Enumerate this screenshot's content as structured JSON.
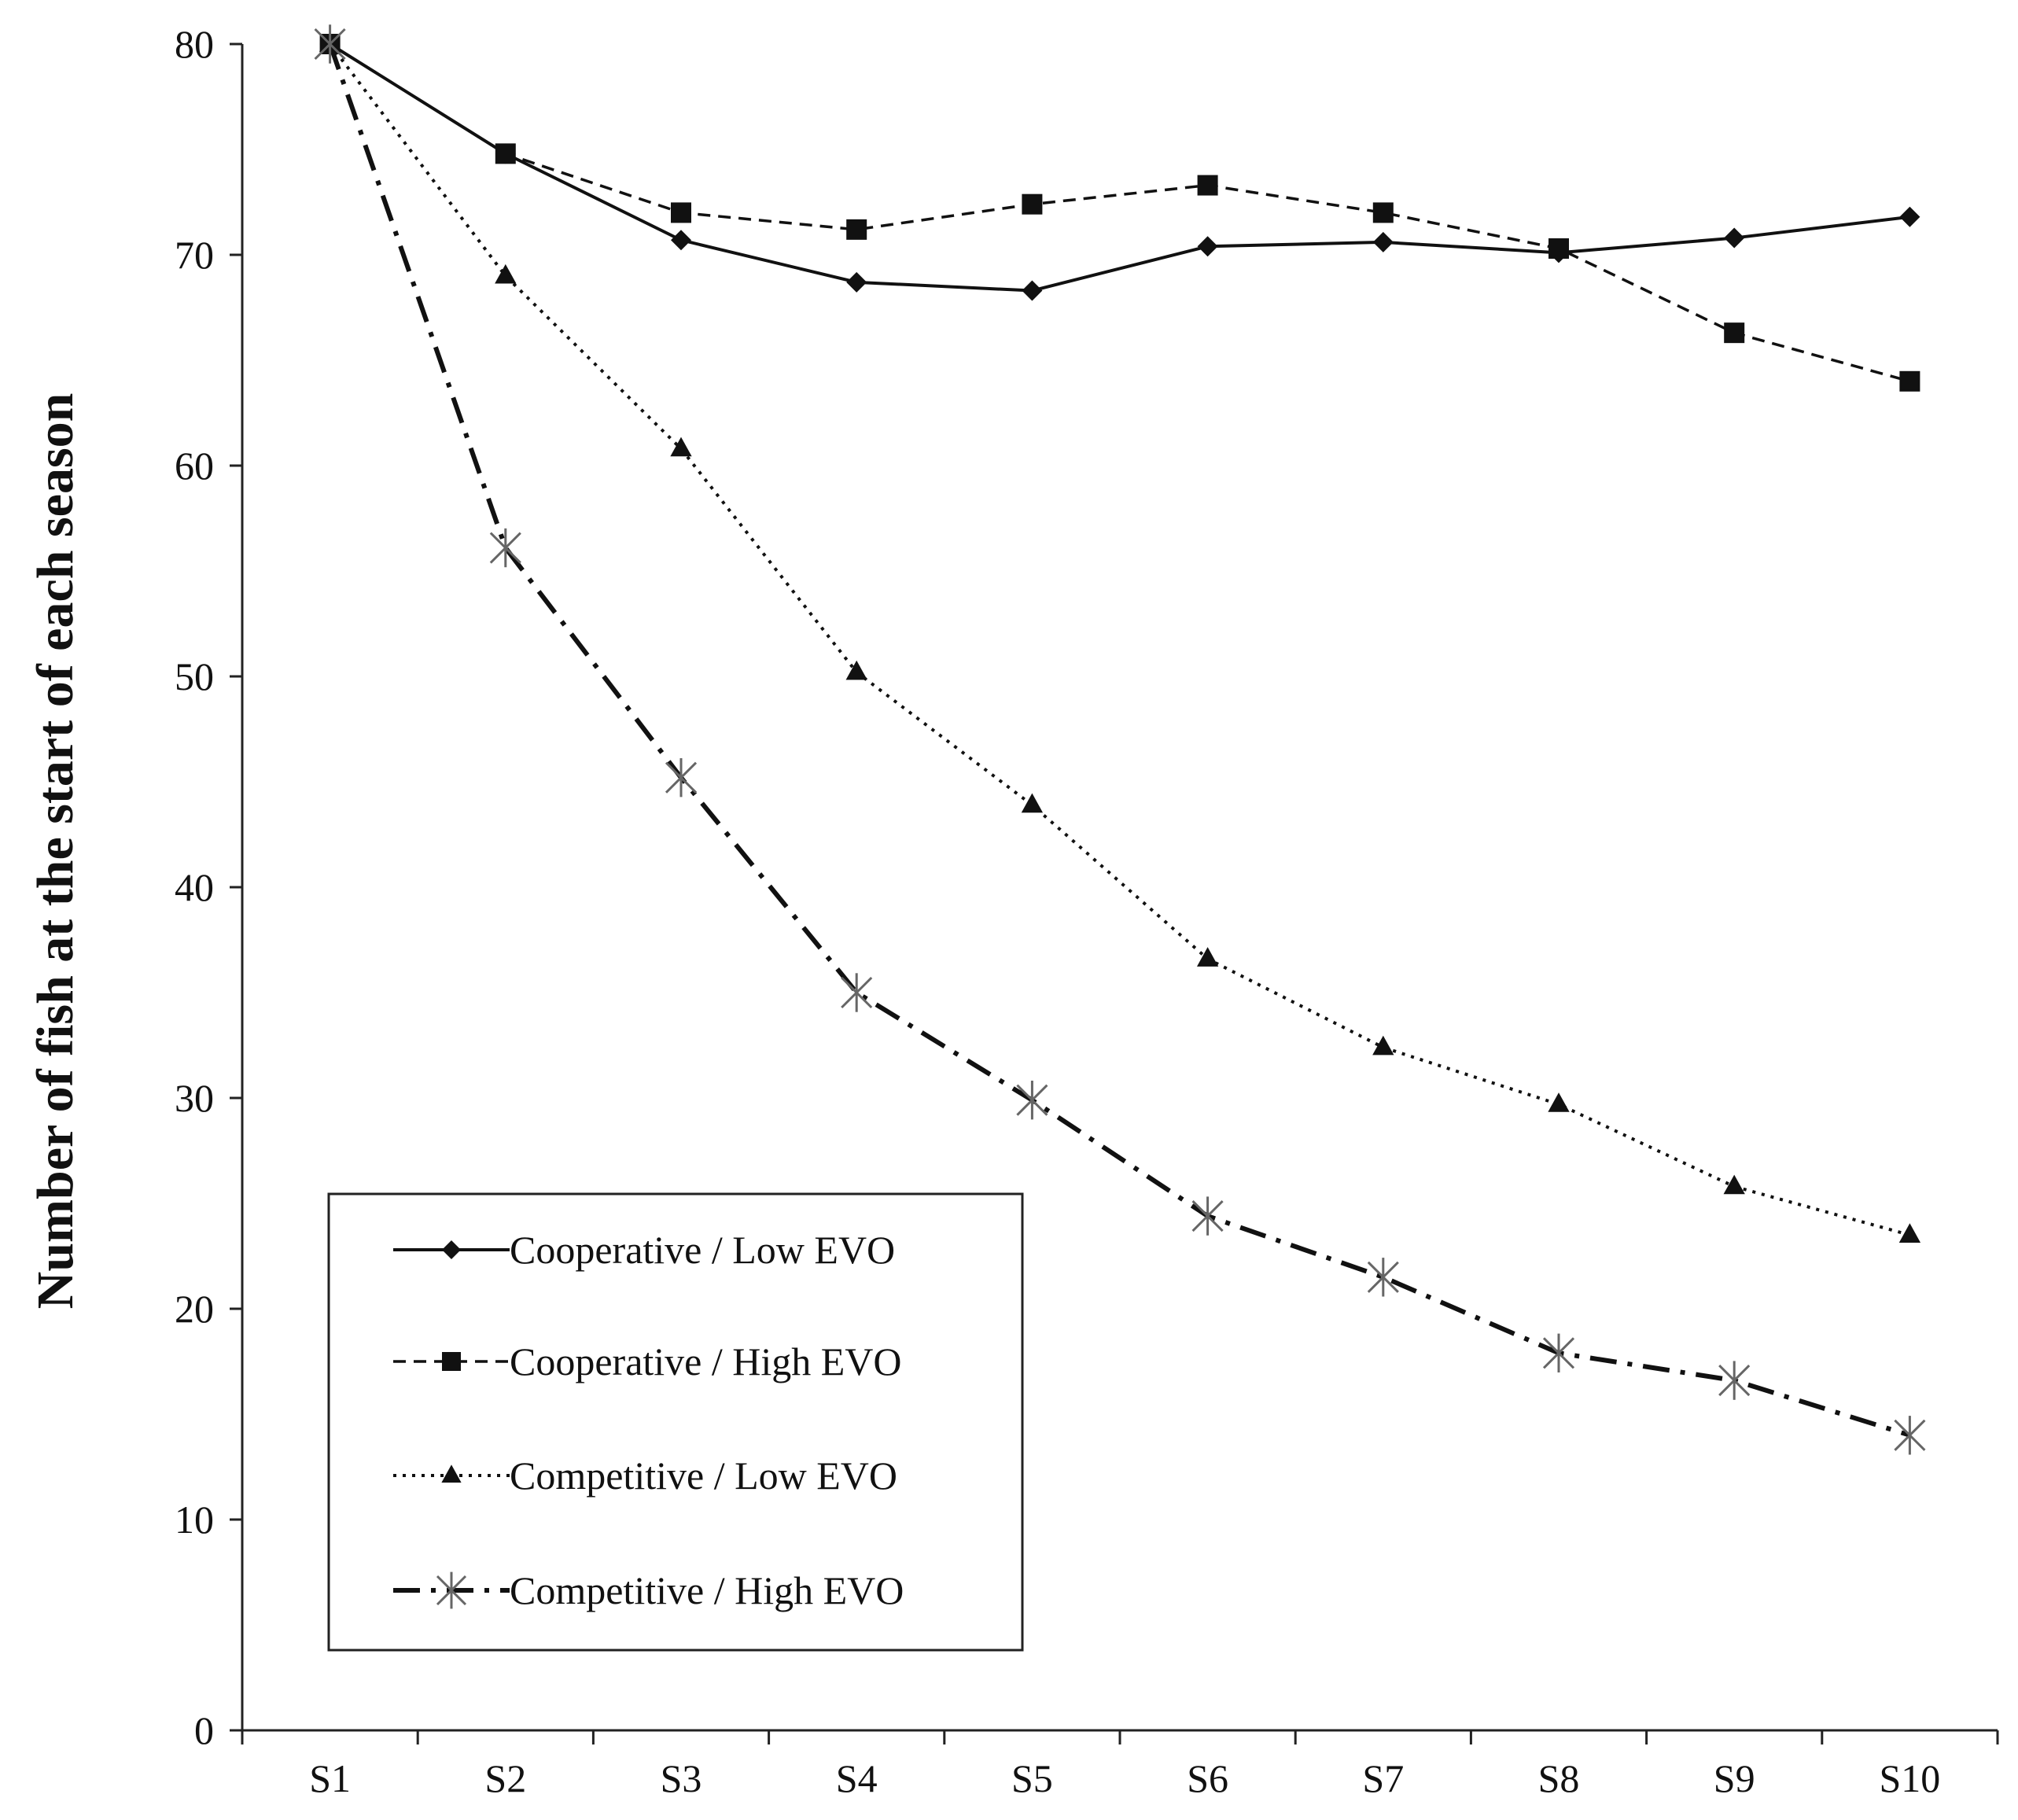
{
  "chart_data": {
    "type": "line",
    "title": "",
    "xlabel": "",
    "ylabel": "Number of fish at the start of each season",
    "ylim": [
      0,
      80
    ],
    "yticks": [
      "0",
      "10",
      "20",
      "30",
      "40",
      "50",
      "60",
      "70",
      "80"
    ],
    "categories": [
      "S1",
      "S2",
      "S3",
      "S4",
      "S5",
      "S6",
      "S7",
      "S8",
      "S9",
      "S10"
    ],
    "grid": false,
    "legend_position": "bottom-left",
    "series": [
      {
        "name": "Cooperative / Low EVO",
        "marker": "diamond",
        "line": "solid",
        "color": "#111111",
        "values": [
          80,
          74.8,
          70.7,
          68.7,
          68.3,
          70.4,
          70.6,
          70.1,
          70.8,
          71.8
        ]
      },
      {
        "name": "Cooperative / High EVO",
        "marker": "square",
        "line": "dashed",
        "color": "#111111",
        "values": [
          80,
          74.8,
          72.0,
          71.2,
          72.4,
          73.3,
          72.0,
          70.3,
          66.3,
          64.0
        ]
      },
      {
        "name": "Competitive / Low EVO",
        "marker": "triangle",
        "line": "dotted",
        "color": "#111111",
        "values": [
          80,
          69.0,
          60.8,
          50.2,
          43.9,
          36.6,
          32.4,
          29.7,
          25.8,
          23.5
        ]
      },
      {
        "name": "Competitive / High EVO",
        "marker": "asterisk",
        "line": "dash-dot",
        "color": "#111111",
        "values": [
          80,
          56.1,
          45.2,
          35.0,
          29.9,
          24.4,
          21.5,
          17.9,
          16.6,
          14.0
        ]
      }
    ]
  }
}
